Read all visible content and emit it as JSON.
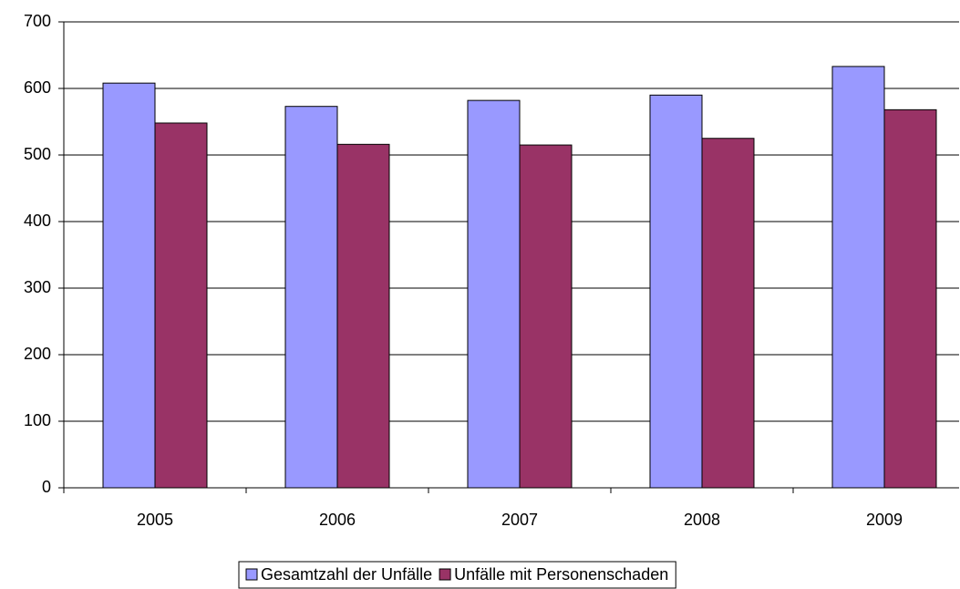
{
  "chart_data": {
    "type": "bar",
    "categories": [
      "2005",
      "2006",
      "2007",
      "2008",
      "2009"
    ],
    "series": [
      {
        "name": "Gesamtzahl der Unfälle",
        "color": "#9999ff",
        "values": [
          608,
          573,
          582,
          590,
          633
        ]
      },
      {
        "name": "Unfälle mit Personenschaden",
        "color": "#993366",
        "values": [
          548,
          516,
          515,
          525,
          568
        ]
      }
    ],
    "ylim": [
      0,
      700
    ],
    "yticks": [
      0,
      100,
      200,
      300,
      400,
      500,
      600,
      700
    ],
    "grid": true,
    "legend": "bottom"
  }
}
